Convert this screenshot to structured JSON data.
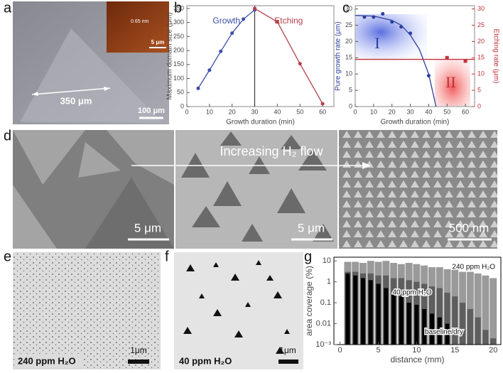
{
  "images": [
    {
      "label": "a",
      "texts": [
        "350 μm",
        "100 μm",
        "0.65 nm",
        "5 μm"
      ]
    },
    {
      "label": "d",
      "texts": [
        "Increasing H₂ flow",
        "5 μm",
        "5 μm",
        "500 nm"
      ]
    },
    {
      "label": "e",
      "texts": [
        "240 ppm H₂O",
        "1μm"
      ]
    },
    {
      "label": "f",
      "texts": [
        "40 ppm H₂O",
        "1μm"
      ]
    }
  ],
  "chart_data": [
    {
      "type": "line",
      "label": "b",
      "xlabel": "Growth duration (min)",
      "ylabel": "Maximum domain size (μm)",
      "xlim": [
        0,
        65
      ],
      "xticks": [
        0,
        10,
        20,
        30,
        40,
        50,
        60
      ],
      "ylim": [
        0,
        360
      ],
      "yticks": [
        0,
        50,
        100,
        150,
        200,
        250,
        300,
        350
      ],
      "vline": 30,
      "series": [
        {
          "name": "Growth",
          "color": "#3a4fa8",
          "x": [
            5,
            10,
            15,
            20,
            25,
            30
          ],
          "values": [
            65,
            130,
            197,
            262,
            312,
            345
          ]
        },
        {
          "name": "Etching",
          "color": "#b5404a",
          "x": [
            30,
            40,
            50,
            60
          ],
          "values": [
            350,
            302,
            153,
            10
          ]
        }
      ]
    },
    {
      "type": "line",
      "label": "c",
      "xlabel": "Growth duration (min)",
      "ylabel": "Pure growth rate (μm)",
      "y2label": "Etching rate (μm)",
      "xlim": [
        0,
        65
      ],
      "xticks": [
        0,
        10,
        20,
        30,
        40,
        50,
        60
      ],
      "ylim": [
        0,
        31
      ],
      "yticks": [
        0,
        5,
        10,
        15,
        20,
        25,
        30
      ],
      "y2lim": [
        0,
        31
      ],
      "y2ticks": [
        0,
        5,
        10,
        15,
        20,
        25,
        30
      ],
      "annotations": [
        "I",
        "II"
      ],
      "series": [
        {
          "color": "#2c3e9e",
          "marker": "circle",
          "line": false,
          "x": [
            5,
            10,
            15,
            20,
            25,
            30,
            40
          ],
          "values": [
            27.5,
            27.5,
            28.5,
            26,
            24.5,
            22.5,
            9.5
          ]
        },
        {
          "color": "#2c3e9e",
          "marker": "none",
          "line": true,
          "x": [
            0,
            10,
            20,
            25,
            30,
            35,
            40,
            44
          ],
          "values": [
            28,
            27.8,
            26.5,
            25,
            22,
            17.5,
            10,
            0
          ]
        },
        {
          "color": "#c0303a",
          "marker": "square",
          "line": false,
          "axis": "y2",
          "x": [
            50,
            60
          ],
          "values": [
            15,
            14
          ]
        },
        {
          "color": "#c0303a",
          "marker": "none",
          "line": true,
          "axis": "y2",
          "x": [
            0,
            65
          ],
          "values": [
            14.5,
            14.5
          ]
        }
      ]
    },
    {
      "type": "bar",
      "label": "g",
      "xlabel": "distance (mm)",
      "ylabel": "area coverage (%)",
      "log_y": true,
      "xlim": [
        -0.8,
        21
      ],
      "xticks": [
        0,
        5,
        10,
        15,
        20
      ],
      "ylim": [
        0.001,
        15
      ],
      "yticks": [
        {
          "value": 0.001,
          "label": "10⁻³"
        },
        0.01,
        0.1,
        1,
        10
      ],
      "x": [
        1,
        2,
        3,
        4,
        5,
        6,
        7,
        8,
        9,
        10,
        11,
        12,
        13,
        14,
        15,
        16,
        17,
        18,
        19,
        20
      ],
      "series": [
        {
          "name": "240 ppm H₂O",
          "color": "#9a9a9a",
          "values": [
            9,
            9,
            8,
            10,
            9,
            10,
            8,
            7,
            8,
            7,
            6,
            5,
            5,
            4,
            4,
            3,
            3,
            2.5,
            2,
            1.5
          ]
        },
        {
          "name": "40 ppm H₂O",
          "color": "#5e5e5e",
          "values": [
            3,
            3,
            2.5,
            2.5,
            2,
            2,
            1.5,
            1.5,
            1.2,
            1,
            0.8,
            0.6,
            0.5,
            0.3,
            0.2,
            0.1,
            0.05,
            0.02,
            0.005,
            0.002
          ]
        },
        {
          "name": "baseline/dry",
          "color": "#000000",
          "values": [
            2.5,
            2,
            1.5,
            1.2,
            0.8,
            0.5,
            0.3,
            0.2,
            0.1,
            0.08,
            0.05,
            0.03,
            0.02,
            0.01,
            null,
            null,
            null,
            null,
            null,
            null
          ]
        }
      ]
    }
  ]
}
